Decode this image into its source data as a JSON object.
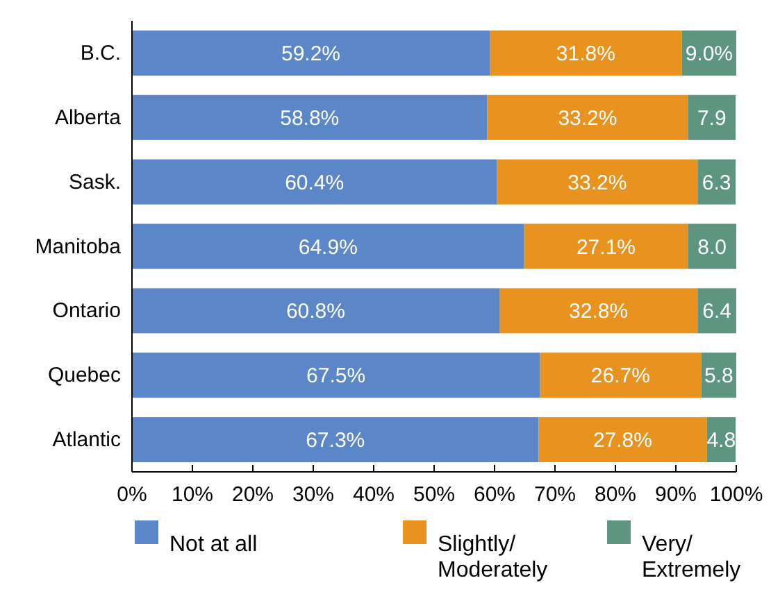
{
  "chart_data": {
    "type": "bar",
    "orientation": "horizontal",
    "stacked": true,
    "categories": [
      "B.C.",
      "Alberta",
      "Sask.",
      "Manitoba",
      "Ontario",
      "Quebec",
      "Atlantic"
    ],
    "series": [
      {
        "name": "Not at all",
        "color": "#5b87c8",
        "values": [
          59.2,
          58.8,
          60.4,
          64.9,
          60.8,
          67.5,
          67.3
        ],
        "value_labels": [
          "59.2%",
          "58.8%",
          "60.4%",
          "64.9%",
          "60.8%",
          "67.5%",
          "67.3%"
        ]
      },
      {
        "name": "Slightly/ Moderately",
        "color": "#e8931f",
        "values": [
          31.8,
          33.2,
          33.2,
          27.1,
          32.8,
          26.7,
          27.8
        ],
        "value_labels": [
          "31.8%",
          "33.2%",
          "33.2%",
          "27.1%",
          "32.8%",
          "26.7%",
          "27.8%"
        ]
      },
      {
        "name": "Very/ Extremely",
        "color": "#5d9580",
        "values": [
          9.0,
          7.9,
          6.3,
          8.0,
          6.4,
          5.8,
          4.8
        ],
        "value_labels": [
          "9.0%",
          "7.9",
          "6.3",
          "8.0",
          "6.4",
          "5.8",
          "4.8"
        ]
      }
    ],
    "xlim": [
      0,
      100
    ],
    "xticks": [
      {
        "value": 0,
        "label": "0%"
      },
      {
        "value": 10,
        "label": "10%"
      },
      {
        "value": 20,
        "label": "20%"
      },
      {
        "value": 30,
        "label": "30%"
      },
      {
        "value": 40,
        "label": "40%"
      },
      {
        "value": 50,
        "label": "50%"
      },
      {
        "value": 60,
        "label": "60%"
      },
      {
        "value": 70,
        "label": "70%"
      },
      {
        "value": 80,
        "label": "80%"
      },
      {
        "value": 90,
        "label": "90%"
      },
      {
        "value": 100,
        "label": "100%"
      }
    ],
    "grid": false,
    "legend": "bottom"
  }
}
